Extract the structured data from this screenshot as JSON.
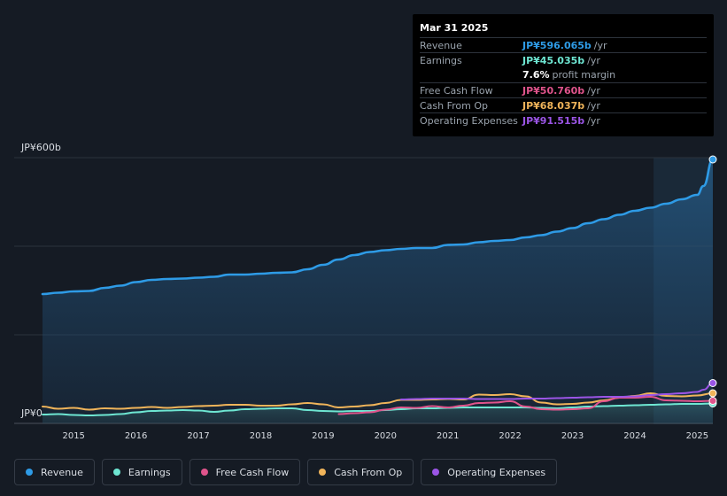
{
  "tooltip": {
    "date": "Mar 31 2025",
    "rows": [
      {
        "label": "Revenue",
        "value": "JP¥596.065b",
        "unit": "/yr",
        "color": "#2e9be6"
      },
      {
        "label": "Earnings",
        "value": "JP¥45.035b",
        "unit": "/yr",
        "color": "#6ee6d2"
      },
      {
        "label": "",
        "value": "7.6%",
        "unit": "profit margin",
        "color": "#ffffff"
      },
      {
        "label": "Free Cash Flow",
        "value": "JP¥50.760b",
        "unit": "/yr",
        "color": "#e0548c"
      },
      {
        "label": "Cash From Op",
        "value": "JP¥68.037b",
        "unit": "/yr",
        "color": "#f0b45a"
      },
      {
        "label": "Operating Expenses",
        "value": "JP¥91.515b",
        "unit": "/yr",
        "color": "#9b55e6"
      }
    ]
  },
  "legend": [
    {
      "label": "Revenue",
      "color": "#2e9be6"
    },
    {
      "label": "Earnings",
      "color": "#6ee6d2"
    },
    {
      "label": "Free Cash Flow",
      "color": "#e0548c"
    },
    {
      "label": "Cash From Op",
      "color": "#f0b45a"
    },
    {
      "label": "Operating Expenses",
      "color": "#9b55e6"
    }
  ],
  "chart_data": {
    "type": "line",
    "title": "",
    "y_top_label": "JP¥600b",
    "y_bottom_label": "JP¥0",
    "ylim": [
      0,
      600
    ],
    "xlim": [
      2014.5,
      2025.25
    ],
    "forecast_start": 2024.3,
    "x_ticks": [
      "2015",
      "2016",
      "2017",
      "2018",
      "2019",
      "2020",
      "2021",
      "2022",
      "2023",
      "2024",
      "2025"
    ],
    "x_tick_values": [
      2015,
      2016,
      2017,
      2018,
      2019,
      2020,
      2021,
      2022,
      2023,
      2024,
      2025
    ],
    "series": [
      {
        "name": "Revenue",
        "color": "#2e9be6",
        "fill": true,
        "x": [
          2014.5,
          2014.75,
          2015.0,
          2015.25,
          2015.5,
          2015.75,
          2016.0,
          2016.25,
          2016.5,
          2016.75,
          2017.0,
          2017.25,
          2017.5,
          2017.75,
          2018.0,
          2018.25,
          2018.5,
          2018.75,
          2019.0,
          2019.25,
          2019.5,
          2019.75,
          2020.0,
          2020.25,
          2020.5,
          2020.75,
          2021.0,
          2021.25,
          2021.5,
          2021.75,
          2022.0,
          2022.25,
          2022.5,
          2022.75,
          2023.0,
          2023.25,
          2023.5,
          2023.75,
          2024.0,
          2024.25,
          2024.5,
          2024.75,
          2025.0,
          2025.1,
          2025.25
        ],
        "values": [
          292,
          295,
          298,
          299,
          306,
          311,
          319,
          324,
          326,
          327,
          329,
          331,
          336,
          336,
          338,
          340,
          341,
          348,
          358,
          370,
          380,
          387,
          391,
          394,
          396,
          396,
          403,
          404,
          409,
          412,
          414,
          420,
          425,
          433,
          441,
          452,
          461,
          471,
          480,
          487,
          496,
          506,
          516,
          536,
          596
        ]
      },
      {
        "name": "Earnings",
        "color": "#6ee6d2",
        "fill": true,
        "x": [
          2014.5,
          2014.75,
          2015.0,
          2015.25,
          2015.5,
          2015.75,
          2016.0,
          2016.25,
          2016.5,
          2016.75,
          2017.0,
          2017.25,
          2017.5,
          2017.75,
          2018.0,
          2018.25,
          2018.5,
          2018.75,
          2019.0,
          2019.25,
          2019.5,
          2019.75,
          2020.0,
          2020.25,
          2020.5,
          2020.75,
          2021.0,
          2021.25,
          2021.5,
          2021.75,
          2022.0,
          2022.25,
          2022.5,
          2022.75,
          2023.0,
          2023.25,
          2023.5,
          2023.75,
          2024.0,
          2024.25,
          2024.5,
          2024.75,
          2025.0,
          2025.25
        ],
        "values": [
          20,
          21,
          19,
          18,
          19,
          21,
          25,
          28,
          29,
          30,
          29,
          26,
          29,
          32,
          33,
          34,
          34,
          30,
          28,
          27,
          28,
          28,
          30,
          32,
          34,
          34,
          35,
          36,
          36,
          36,
          36,
          36,
          35,
          34,
          36,
          38,
          39,
          40,
          41,
          42,
          43,
          44,
          44,
          45
        ]
      },
      {
        "name": "Free Cash Flow",
        "color": "#e0548c",
        "fill": false,
        "x": [
          2019.25,
          2019.5,
          2019.75,
          2020.0,
          2020.25,
          2020.5,
          2020.75,
          2021.0,
          2021.25,
          2021.5,
          2021.75,
          2022.0,
          2022.25,
          2022.5,
          2022.75,
          2023.0,
          2023.25,
          2023.5,
          2023.75,
          2024.0,
          2024.25,
          2024.5,
          2024.75,
          2025.0,
          2025.25
        ],
        "values": [
          21,
          23,
          25,
          31,
          36,
          35,
          39,
          36,
          40,
          46,
          47,
          50,
          38,
          32,
          31,
          32,
          34,
          50,
          58,
          58,
          60,
          52,
          51,
          50,
          51
        ]
      },
      {
        "name": "Cash From Op",
        "color": "#f0b45a",
        "fill": false,
        "x": [
          2014.5,
          2014.75,
          2015.0,
          2015.25,
          2015.5,
          2015.75,
          2016.0,
          2016.25,
          2016.5,
          2016.75,
          2017.0,
          2017.25,
          2017.5,
          2017.75,
          2018.0,
          2018.25,
          2018.5,
          2018.75,
          2019.0,
          2019.25,
          2019.5,
          2019.75,
          2020.0,
          2020.25,
          2020.5,
          2020.75,
          2021.0,
          2021.25,
          2021.5,
          2021.75,
          2022.0,
          2022.25,
          2022.5,
          2022.75,
          2023.0,
          2023.25,
          2023.5,
          2023.75,
          2024.0,
          2024.25,
          2024.5,
          2024.75,
          2025.0,
          2025.25
        ],
        "values": [
          38,
          33,
          35,
          31,
          34,
          33,
          35,
          37,
          35,
          37,
          39,
          40,
          42,
          42,
          40,
          40,
          43,
          46,
          43,
          36,
          38,
          41,
          46,
          53,
          53,
          54,
          55,
          54,
          65,
          64,
          66,
          61,
          47,
          43,
          44,
          47,
          52,
          58,
          62,
          68,
          62,
          61,
          63,
          68
        ]
      },
      {
        "name": "Operating Expenses",
        "color": "#9b55e6",
        "fill": false,
        "x": [
          2020.25,
          2020.5,
          2020.75,
          2021.0,
          2021.25,
          2021.5,
          2021.75,
          2022.0,
          2022.25,
          2022.5,
          2022.75,
          2023.0,
          2023.25,
          2023.5,
          2023.75,
          2024.0,
          2024.25,
          2024.5,
          2024.75,
          2025.0,
          2025.1,
          2025.25
        ],
        "values": [
          54,
          55,
          56,
          56,
          56,
          55,
          55,
          55,
          56,
          56,
          57,
          58,
          59,
          60,
          60,
          61,
          64,
          66,
          68,
          71,
          76,
          91
        ]
      }
    ]
  }
}
